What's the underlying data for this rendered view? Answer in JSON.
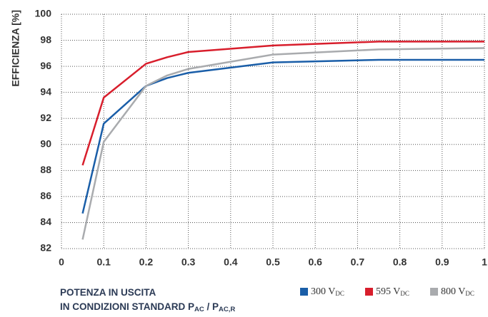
{
  "chart_data": {
    "type": "line",
    "y_label": "EFFICIENZA [%]",
    "x_label_lines": [
      [
        "POTENZA IN USCITA"
      ],
      [
        "IN CONDIZIONI STANDARD P",
        "AC",
        " / P",
        "AC,R"
      ]
    ],
    "x": [
      0.05,
      0.1,
      0.2,
      0.25,
      0.3,
      0.5,
      0.75,
      1
    ],
    "series": [
      {
        "name": "300 V",
        "name_sub": "DC",
        "color": "#1a5ea8",
        "values": [
          84.7,
          91.6,
          94.5,
          95.1,
          95.5,
          96.3,
          96.5,
          96.5
        ]
      },
      {
        "name": "595 V",
        "name_sub": "DC",
        "color": "#d81e2c",
        "values": [
          88.4,
          93.6,
          96.2,
          96.7,
          97.1,
          97.6,
          97.9,
          97.9
        ]
      },
      {
        "name": "800 V",
        "name_sub": "DC",
        "color": "#a9abae",
        "values": [
          82.7,
          90.2,
          94.5,
          95.3,
          95.8,
          96.9,
          97.3,
          97.4
        ]
      }
    ],
    "xlim": [
      0,
      1
    ],
    "xticks": [
      0,
      0.1,
      0.2,
      0.3,
      0.4,
      0.5,
      0.6,
      0.7,
      0.8,
      0.9,
      1
    ],
    "ylim": [
      82,
      100
    ],
    "yticks": [
      82,
      84,
      86,
      88,
      90,
      92,
      94,
      96,
      98,
      100
    ],
    "grid": true
  }
}
